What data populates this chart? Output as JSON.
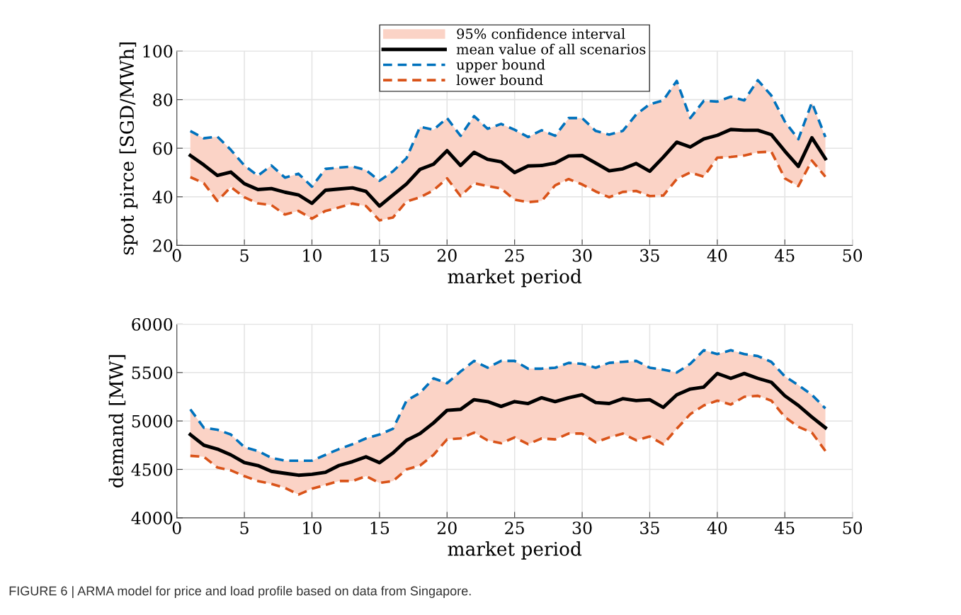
{
  "chart_data": [
    {
      "type": "line",
      "xlabel": "market period",
      "ylabel": "spot pirce [SGD/MWh]",
      "xlim": [
        0,
        50
      ],
      "xticks": [
        0,
        5,
        10,
        15,
        20,
        25,
        30,
        35,
        40,
        45,
        50
      ],
      "ylim": [
        20,
        100
      ],
      "yticks": [
        20,
        40,
        60,
        80,
        100
      ],
      "grid": true,
      "legend": "top",
      "x": [
        1,
        2,
        3,
        4,
        5,
        6,
        7,
        8,
        9,
        10,
        11,
        12,
        13,
        14,
        15,
        16,
        17,
        18,
        19,
        20,
        21,
        22,
        23,
        24,
        25,
        26,
        27,
        28,
        29,
        30,
        31,
        32,
        33,
        34,
        35,
        36,
        37,
        38,
        39,
        40,
        41,
        42,
        43,
        44,
        45,
        46,
        47,
        48
      ],
      "annotations": [
        "95% confidence interval"
      ],
      "series": [
        {
          "name": "mean value of all scenarios",
          "type": "line",
          "color": "#000000",
          "line_style": "solid",
          "values": [
            57.0,
            53.1,
            48.8,
            50.2,
            45.4,
            43.0,
            43.4,
            41.9,
            40.8,
            37.3,
            42.7,
            43.2,
            43.7,
            42.2,
            36.2,
            40.8,
            45.3,
            51.3,
            53.4,
            59.0,
            52.9,
            58.3,
            55.4,
            54.4,
            50.0,
            52.7,
            52.9,
            53.9,
            56.8,
            57.0,
            53.9,
            50.7,
            51.5,
            53.7,
            50.5,
            56.3,
            62.5,
            60.5,
            63.8,
            65.3,
            67.7,
            67.4,
            67.4,
            65.6,
            58.8,
            52.5,
            64.3,
            55.7
          ],
          "lower": [
            48.1,
            45.6,
            38.3,
            44.0,
            39.8,
            37.3,
            36.6,
            32.7,
            34.2,
            31.0,
            34.2,
            35.6,
            37.2,
            36.2,
            30.3,
            31.5,
            38.1,
            39.8,
            42.7,
            47.6,
            40.3,
            45.6,
            44.4,
            43.4,
            38.8,
            37.8,
            38.3,
            44.7,
            47.3,
            45.1,
            42.2,
            39.8,
            42.0,
            42.4,
            40.3,
            40.5,
            47.3,
            50.0,
            48.3,
            56.1,
            56.4,
            57.0,
            58.3,
            58.6,
            47.6,
            44.4,
            54.9,
            48.3
          ],
          "upper": [
            67.1,
            64.1,
            64.8,
            59.3,
            52.9,
            48.7,
            52.9,
            47.9,
            49.5,
            44.2,
            51.5,
            52.0,
            52.5,
            51.0,
            46.6,
            50.5,
            55.9,
            68.8,
            67.6,
            72.4,
            65.1,
            73.2,
            68.0,
            70.0,
            67.6,
            64.6,
            67.4,
            65.1,
            72.4,
            72.4,
            67.1,
            65.6,
            67.1,
            73.9,
            78.1,
            79.7,
            87.7,
            72.4,
            79.5,
            79.2,
            81.2,
            79.7,
            88.0,
            81.7,
            71.0,
            63.7,
            78.8,
            64.6
          ]
        },
        {
          "name": "upper bound",
          "type": "line",
          "color": "#0072bd",
          "line_style": "dashed",
          "values": [
            67.1,
            64.1,
            64.8,
            59.3,
            52.9,
            48.7,
            52.9,
            47.9,
            49.5,
            44.2,
            51.5,
            52.0,
            52.5,
            51.0,
            46.6,
            50.5,
            55.9,
            68.8,
            67.6,
            72.4,
            65.1,
            73.2,
            68.0,
            70.0,
            67.6,
            64.6,
            67.4,
            65.1,
            72.4,
            72.4,
            67.1,
            65.6,
            67.1,
            73.9,
            78.1,
            79.7,
            87.7,
            72.4,
            79.5,
            79.2,
            81.2,
            79.7,
            88.0,
            81.7,
            71.0,
            63.7,
            78.8,
            64.6
          ]
        },
        {
          "name": "lower bound",
          "type": "line",
          "color": "#d95319",
          "line_style": "dashed",
          "values": [
            48.1,
            45.6,
            38.3,
            44.0,
            39.8,
            37.3,
            36.6,
            32.7,
            34.2,
            31.0,
            34.2,
            35.6,
            37.2,
            36.2,
            30.3,
            31.5,
            38.1,
            39.8,
            42.7,
            47.6,
            40.3,
            45.6,
            44.4,
            43.4,
            38.8,
            37.8,
            38.3,
            44.7,
            47.3,
            45.1,
            42.2,
            39.8,
            42.0,
            42.4,
            40.3,
            40.5,
            47.3,
            50.0,
            48.3,
            56.1,
            56.4,
            57.0,
            58.3,
            58.6,
            47.6,
            44.4,
            54.9,
            48.3
          ]
        }
      ]
    },
    {
      "type": "line",
      "xlabel": "market period",
      "ylabel": "demand [MW]",
      "xlim": [
        0,
        50
      ],
      "xticks": [
        0,
        5,
        10,
        15,
        20,
        25,
        30,
        35,
        40,
        45,
        50
      ],
      "ylim": [
        4000,
        6000
      ],
      "yticks": [
        4000,
        4500,
        5000,
        5500,
        6000
      ],
      "grid": true,
      "x": [
        1,
        2,
        3,
        4,
        5,
        6,
        7,
        8,
        9,
        10,
        11,
        12,
        13,
        14,
        15,
        16,
        17,
        18,
        19,
        20,
        21,
        22,
        23,
        24,
        25,
        26,
        27,
        28,
        29,
        30,
        31,
        32,
        33,
        34,
        35,
        36,
        37,
        38,
        39,
        40,
        41,
        42,
        43,
        44,
        45,
        46,
        47,
        48
      ],
      "annotations": [
        "FIGURE 6 | ARMA model for price and load profile based on data from Singapore."
      ],
      "series": [
        {
          "type": "line",
          "color": "#000000",
          "line_style": "solid",
          "values": [
            4860,
            4750,
            4710,
            4650,
            4570,
            4540,
            4480,
            4460,
            4440,
            4450,
            4470,
            4540,
            4580,
            4630,
            4570,
            4670,
            4800,
            4870,
            4980,
            5110,
            5120,
            5220,
            5200,
            5150,
            5200,
            5180,
            5240,
            5200,
            5240,
            5270,
            5190,
            5180,
            5230,
            5210,
            5220,
            5140,
            5270,
            5330,
            5350,
            5490,
            5440,
            5490,
            5440,
            5400,
            5260,
            5160,
            5040,
            4930
          ],
          "lower": [
            4640,
            4630,
            4520,
            4490,
            4430,
            4380,
            4350,
            4310,
            4240,
            4300,
            4340,
            4380,
            4380,
            4430,
            4360,
            4380,
            4500,
            4540,
            4650,
            4810,
            4820,
            4880,
            4800,
            4770,
            4830,
            4760,
            4820,
            4810,
            4870,
            4870,
            4780,
            4830,
            4870,
            4800,
            4840,
            4760,
            4920,
            5070,
            5160,
            5210,
            5170,
            5250,
            5260,
            5210,
            5040,
            4940,
            4880,
            4690
          ],
          "upper": [
            5120,
            4930,
            4910,
            4860,
            4730,
            4690,
            4620,
            4590,
            4590,
            4590,
            4650,
            4710,
            4760,
            4820,
            4860,
            4920,
            5210,
            5290,
            5440,
            5390,
            5510,
            5620,
            5550,
            5620,
            5620,
            5540,
            5540,
            5550,
            5600,
            5590,
            5550,
            5600,
            5610,
            5620,
            5550,
            5530,
            5500,
            5590,
            5730,
            5690,
            5730,
            5690,
            5670,
            5610,
            5460,
            5370,
            5270,
            5130
          ]
        },
        {
          "type": "line",
          "color": "#0072bd",
          "line_style": "dashed",
          "values": [
            5120,
            4930,
            4910,
            4860,
            4730,
            4690,
            4620,
            4590,
            4590,
            4590,
            4650,
            4710,
            4760,
            4820,
            4860,
            4920,
            5210,
            5290,
            5440,
            5390,
            5510,
            5620,
            5550,
            5620,
            5620,
            5540,
            5540,
            5550,
            5600,
            5590,
            5550,
            5600,
            5610,
            5620,
            5550,
            5530,
            5500,
            5590,
            5730,
            5690,
            5730,
            5690,
            5670,
            5610,
            5460,
            5370,
            5270,
            5130
          ]
        },
        {
          "type": "line",
          "color": "#d95319",
          "line_style": "dashed",
          "values": [
            4640,
            4630,
            4520,
            4490,
            4430,
            4380,
            4350,
            4310,
            4240,
            4300,
            4340,
            4380,
            4380,
            4430,
            4360,
            4380,
            4500,
            4540,
            4650,
            4810,
            4820,
            4880,
            4800,
            4770,
            4830,
            4760,
            4820,
            4810,
            4870,
            4870,
            4780,
            4830,
            4870,
            4800,
            4840,
            4760,
            4920,
            5070,
            5160,
            5210,
            5170,
            5250,
            5260,
            5210,
            5040,
            4940,
            4880,
            4690
          ]
        }
      ]
    }
  ]
}
